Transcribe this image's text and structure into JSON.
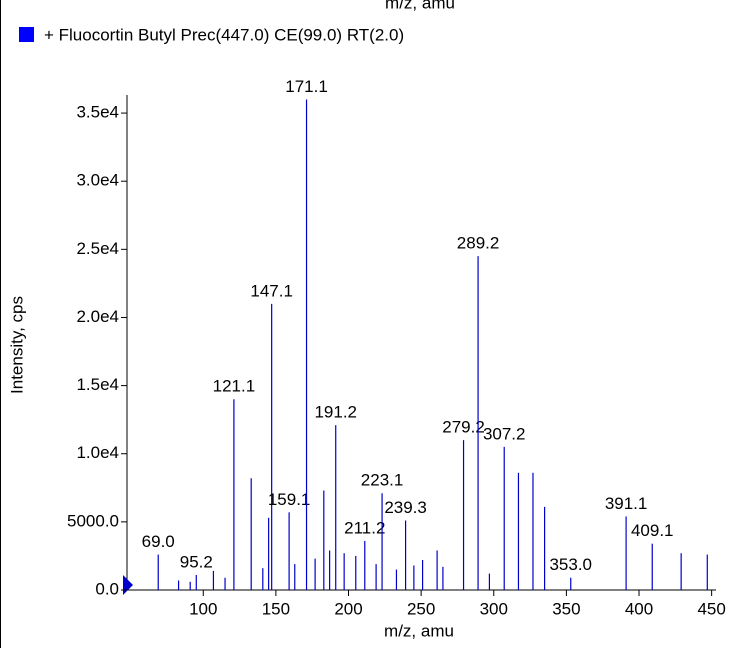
{
  "chart_data": {
    "type": "stick",
    "title": "m/z, amu",
    "legend": "+ Fluocortin Butyl  Prec(447.0) CE(99.0) RT(2.0)",
    "xlabel": "m/z, amu",
    "ylabel": "Intensity, cps",
    "color": "#0000cc",
    "xlim": [
      47.5,
      453
    ],
    "ylim": [
      0,
      36400
    ],
    "xticks": [
      100,
      150,
      200,
      250,
      300,
      350,
      400,
      450
    ],
    "yticks": [
      {
        "value": 0,
        "label": "0.0"
      },
      {
        "value": 5000,
        "label": "5000.0"
      },
      {
        "value": 10000,
        "label": "1.0e4"
      },
      {
        "value": 15000,
        "label": "1.5e4"
      },
      {
        "value": 20000,
        "label": "2.0e4"
      },
      {
        "value": 25000,
        "label": "2.5e4"
      },
      {
        "value": 30000,
        "label": "3.0e4"
      },
      {
        "value": 35000,
        "label": "3.5e4"
      }
    ],
    "x": [
      69.0,
      83.0,
      91.0,
      95.2,
      107.0,
      115.0,
      121.1,
      133.0,
      141.0,
      145.0,
      147.1,
      159.1,
      163.0,
      171.1,
      177.0,
      183.0,
      187.0,
      191.2,
      197.0,
      205.0,
      211.2,
      219.0,
      223.1,
      233.0,
      239.3,
      245.0,
      251.0,
      261.0,
      265.0,
      279.2,
      289.2,
      297.0,
      307.2,
      317.0,
      327.0,
      335.0,
      353.0,
      391.1,
      409.1,
      429.0,
      447.0
    ],
    "values": [
      2600,
      700,
      600,
      1100,
      1400,
      900,
      14000,
      8200,
      1600,
      5300,
      21000,
      5700,
      1900,
      36000,
      2300,
      7300,
      2900,
      12100,
      2700,
      2500,
      3600,
      1900,
      7100,
      1500,
      5100,
      1800,
      2200,
      2900,
      1700,
      11000,
      24500,
      1200,
      10500,
      8600,
      8600,
      6100,
      900,
      5400,
      3400,
      2700,
      2600
    ],
    "x_labels": [
      "69.0",
      null,
      null,
      "95.2",
      null,
      null,
      "121.1",
      null,
      null,
      null,
      "147.1",
      "159.1",
      null,
      "171.1",
      null,
      null,
      null,
      "191.2",
      null,
      null,
      "211.2",
      null,
      "223.1",
      null,
      "239.3",
      null,
      null,
      null,
      null,
      "279.2",
      "289.2",
      null,
      "307.2",
      null,
      null,
      null,
      "353.0",
      "391.1",
      "409.1",
      null,
      null
    ]
  }
}
